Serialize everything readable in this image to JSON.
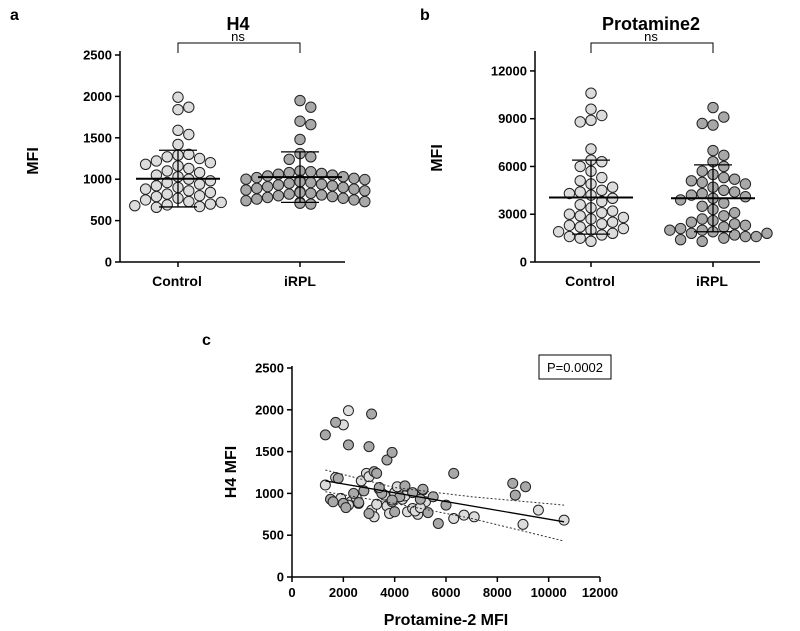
{
  "chart_data": [
    {
      "panel": "a",
      "type": "scatter",
      "title": "H4",
      "xlabel": "",
      "ylabel": "MFI",
      "ylim": [
        0,
        2500
      ],
      "yticks": [
        0,
        500,
        1000,
        1500,
        2000,
        2500
      ],
      "categories": [
        "Control",
        "iRPL"
      ],
      "significance": "ns",
      "series": [
        {
          "category": "Control",
          "color": "#dcdcdc",
          "mean": 1005,
          "sd_low": 665,
          "sd_high": 1350,
          "values": [
            1990,
            1870,
            1840,
            1590,
            1540,
            1420,
            1300,
            1290,
            1270,
            1250,
            1220,
            1200,
            1180,
            1160,
            1130,
            1100,
            1080,
            1050,
            1030,
            1000,
            980,
            960,
            940,
            920,
            900,
            880,
            860,
            840,
            820,
            800,
            790,
            770,
            750,
            730,
            720,
            700,
            690,
            680,
            670,
            660
          ]
        },
        {
          "category": "iRPL",
          "color": "#a8a8a8",
          "mean": 1025,
          "sd_low": 720,
          "sd_high": 1330,
          "values": [
            1950,
            1870,
            1700,
            1660,
            1480,
            1310,
            1270,
            1240,
            1100,
            1090,
            1080,
            1070,
            1060,
            1050,
            1040,
            1030,
            1020,
            1010,
            1000,
            995,
            990,
            980,
            970,
            960,
            950,
            940,
            930,
            920,
            910,
            900,
            890,
            880,
            870,
            860,
            850,
            840,
            830,
            820,
            810,
            800,
            790,
            780,
            770,
            760,
            750,
            740,
            730,
            720,
            710,
            700
          ]
        }
      ]
    },
    {
      "panel": "b",
      "type": "scatter",
      "title": "Protamine2",
      "xlabel": "",
      "ylabel": "MFI",
      "ylim": [
        0,
        13000
      ],
      "yticks": [
        0,
        3000,
        6000,
        9000,
        12000
      ],
      "categories": [
        "Control",
        "iRPL"
      ],
      "significance": "ns",
      "series": [
        {
          "category": "Control",
          "color": "#dcdcdc",
          "mean": 4050,
          "sd_low": 1750,
          "sd_high": 6400,
          "values": [
            10600,
            9600,
            9200,
            8900,
            8800,
            7100,
            6400,
            6300,
            6000,
            5700,
            5300,
            5100,
            4900,
            4700,
            4500,
            4400,
            4300,
            4200,
            4000,
            3800,
            3600,
            3400,
            3200,
            3100,
            3000,
            2900,
            2800,
            2700,
            2500,
            2400,
            2300,
            2200,
            2100,
            2000,
            1900,
            1800,
            1700,
            1600,
            1500,
            1300
          ]
        },
        {
          "category": "iRPL",
          "color": "#a8a8a8",
          "mean": 4000,
          "sd_low": 1900,
          "sd_high": 6100,
          "values": [
            9700,
            9100,
            8600,
            8700,
            7000,
            6700,
            6300,
            6000,
            5700,
            5500,
            5300,
            5200,
            5100,
            5000,
            4900,
            4700,
            4500,
            4400,
            4300,
            4200,
            4100,
            4000,
            3900,
            3700,
            3500,
            3300,
            3100,
            2900,
            2700,
            2600,
            2500,
            2400,
            2300,
            2200,
            2100,
            2000,
            1900,
            1800,
            1700,
            1600,
            1600,
            1500,
            1400,
            1300,
            2000,
            1800
          ]
        }
      ]
    },
    {
      "panel": "c",
      "type": "scatter",
      "title": "",
      "xlabel": "Protamine-2 MFI",
      "ylabel": "H4 MFI",
      "xlim": [
        0,
        12000
      ],
      "ylim": [
        0,
        2500
      ],
      "xticks": [
        0,
        2000,
        4000,
        6000,
        8000,
        10000,
        12000
      ],
      "yticks": [
        0,
        500,
        1000,
        1500,
        2000,
        2500
      ],
      "annotation": "P=0.0002",
      "regression": {
        "x": [
          1300,
          10600
        ],
        "y": [
          1150,
          660
        ]
      },
      "ci_upper": {
        "x": [
          1300,
          4000,
          7000,
          10600
        ],
        "y": [
          1280,
          1070,
          960,
          860
        ]
      },
      "ci_lower": {
        "x": [
          1300,
          4000,
          7000,
          10600
        ],
        "y": [
          1020,
          880,
          700,
          430
        ]
      },
      "series": [
        {
          "name": "",
          "color": "#dcdcdc",
          "x": [
            1300,
            1700,
            2000,
            2200,
            2300,
            2500,
            2700,
            2900,
            3000,
            3100,
            3300,
            3400,
            3600,
            3700,
            3800,
            4000,
            4100,
            4300,
            4500,
            4700,
            4900,
            5100,
            5200,
            6300,
            6700,
            7100,
            9000,
            9600,
            10600,
            1900,
            2200,
            2600,
            3200,
            3900,
            4400,
            4800,
            5000
          ],
          "y": [
            1100,
            1190,
            1820,
            1990,
            900,
            950,
            1150,
            1240,
            1200,
            800,
            870,
            1050,
            980,
            850,
            760,
            1010,
            1080,
            930,
            780,
            820,
            750,
            1040,
            900,
            700,
            740,
            720,
            630,
            800,
            680,
            940,
            860,
            880,
            720,
            900,
            970,
            790,
            830
          ]
        },
        {
          "name": "",
          "color": "#a8a8a8",
          "x": [
            1300,
            1500,
            1700,
            1800,
            2000,
            2200,
            2400,
            2600,
            2800,
            3000,
            3100,
            3200,
            3300,
            3500,
            3700,
            3900,
            4000,
            4200,
            4400,
            4700,
            5000,
            5100,
            5300,
            5500,
            5700,
            6000,
            6300,
            8600,
            8700,
            9100,
            1600,
            2100,
            3000,
            3400,
            3900
          ],
          "y": [
            1700,
            930,
            1850,
            1180,
            880,
            1580,
            1000,
            890,
            1030,
            1560,
            1950,
            1260,
            1240,
            1000,
            1400,
            1490,
            780,
            960,
            1090,
            1010,
            930,
            1050,
            770,
            960,
            640,
            860,
            1240,
            1120,
            980,
            1080,
            900,
            830,
            760,
            1070,
            920
          ]
        }
      ]
    }
  ]
}
